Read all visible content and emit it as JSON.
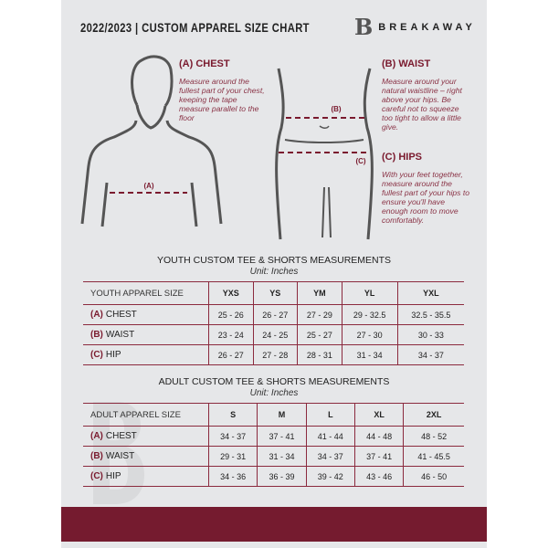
{
  "header": {
    "title": "2022/2023  |  CUSTOM APPAREL SIZE CHART",
    "brand": "BREAKAWAY",
    "brand_logo_letter": "B"
  },
  "guide": {
    "chest": {
      "heading": "(A) CHEST",
      "text": "Measure around the fullest part of your chest, keeping the tape measure parallel to the floor",
      "marker": "(A)"
    },
    "waist": {
      "heading": "(B) WAIST",
      "text": "Measure around your natural waistline – right above your hips. Be careful not to squeeze too tight to allow a little give.",
      "marker": "(B)"
    },
    "hips": {
      "heading": "(C) HIPS",
      "text": "With your feet together, measure around the fullest part of your hips to ensure you'll have enough room to move comfortably.",
      "marker": "(C)"
    }
  },
  "colors": {
    "accent": "#751b2f",
    "panel": "#e6e7e9"
  },
  "youth": {
    "title": "YOUTH CUSTOM TEE & SHORTS MEASUREMENTS",
    "unit": "Unit: Inches",
    "header": [
      "YOUTH APPAREL SIZE",
      "YXS",
      "YS",
      "YM",
      "YL",
      "YXL"
    ],
    "rows": [
      {
        "letter": "(A)",
        "label": "CHEST",
        "values": [
          "25 - 26",
          "26 - 27",
          "27 - 29",
          "29 - 32.5",
          "32.5 - 35.5"
        ]
      },
      {
        "letter": "(B)",
        "label": "WAIST",
        "values": [
          "23 - 24",
          "24 - 25",
          "25 - 27",
          "27 - 30",
          "30 - 33"
        ]
      },
      {
        "letter": "(C)",
        "label": "HIP",
        "values": [
          "26 - 27",
          "27 - 28",
          "28 - 31",
          "31 - 34",
          "34 - 37"
        ]
      }
    ]
  },
  "adult": {
    "title": "ADULT CUSTOM TEE & SHORTS MEASUREMENTS",
    "unit": "Unit: Inches",
    "header": [
      "ADULT APPAREL SIZE",
      "S",
      "M",
      "L",
      "XL",
      "2XL"
    ],
    "rows": [
      {
        "letter": "(A)",
        "label": "CHEST",
        "values": [
          "34 - 37",
          "37 - 41",
          "41 - 44",
          "44 - 48",
          "48 - 52"
        ]
      },
      {
        "letter": "(B)",
        "label": "WAIST",
        "values": [
          "29 - 31",
          "31 - 34",
          "34 - 37",
          "37 - 41",
          "41 - 45.5"
        ]
      },
      {
        "letter": "(C)",
        "label": "HIP",
        "values": [
          "34 - 36",
          "36 - 39",
          "39 - 42",
          "43 - 46",
          "46 - 50"
        ]
      }
    ]
  }
}
